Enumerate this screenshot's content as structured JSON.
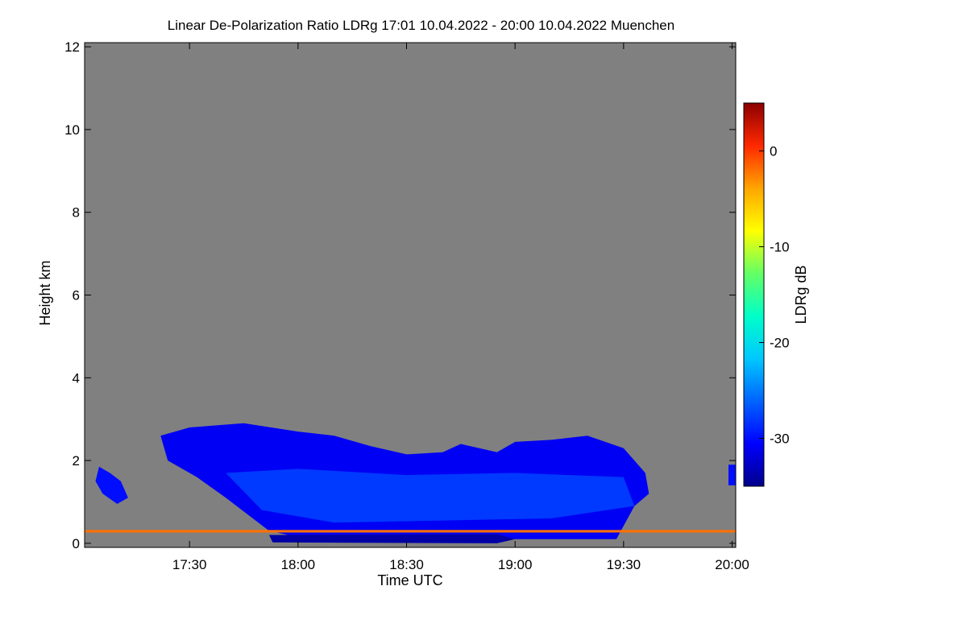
{
  "chart_data": {
    "type": "heatmap",
    "title": "Linear De-Polarization Ratio LDRg   17:01 10.04.2022 - 20:00 10.04.2022 Muenchen",
    "xlabel": "Time UTC",
    "ylabel": "Height km",
    "colorbar_label": "LDRg dB",
    "x_range": [
      "17:01",
      "20:01"
    ],
    "x_ticks": [
      "17:30",
      "18:00",
      "18:30",
      "19:00",
      "19:30",
      "20:00"
    ],
    "y_range": [
      -0.1,
      12.1
    ],
    "y_ticks": [
      0,
      2,
      4,
      6,
      8,
      10,
      12
    ],
    "colorbar_range": [
      -35,
      5
    ],
    "colorbar_ticks": [
      0,
      -10,
      -20,
      -30
    ],
    "background_color": "#808080",
    "colormap": [
      "#00008c",
      "#0000ff",
      "#0064ff",
      "#00c8ff",
      "#00ffc8",
      "#64ff64",
      "#ffff00",
      "#ffa500",
      "#ff2800",
      "#8c0000"
    ],
    "regions": [
      {
        "name": "main-cloud-body",
        "ldr_db": -31,
        "outline": [
          [
            "17:22",
            2.6
          ],
          [
            "17:30",
            2.8
          ],
          [
            "17:45",
            2.9
          ],
          [
            "18:00",
            2.7
          ],
          [
            "18:10",
            2.6
          ],
          [
            "18:20",
            2.35
          ],
          [
            "18:30",
            2.15
          ],
          [
            "18:40",
            2.2
          ],
          [
            "18:45",
            2.4
          ],
          [
            "18:55",
            2.2
          ],
          [
            "19:00",
            2.45
          ],
          [
            "19:10",
            2.5
          ],
          [
            "19:20",
            2.6
          ],
          [
            "19:30",
            2.3
          ],
          [
            "19:36",
            1.7
          ],
          [
            "19:37",
            1.2
          ],
          [
            "19:33",
            0.9
          ],
          [
            "19:28",
            0.1
          ],
          [
            "18:50",
            0.1
          ],
          [
            "18:00",
            0.15
          ],
          [
            "17:52",
            0.3
          ],
          [
            "17:40",
            1.1
          ],
          [
            "17:32",
            1.6
          ],
          [
            "17:24",
            2.0
          ],
          [
            "17:22",
            2.6
          ]
        ]
      },
      {
        "name": "intense-lower-core",
        "ldr_db": -28,
        "outline": [
          [
            "17:40",
            1.7
          ],
          [
            "18:00",
            1.8
          ],
          [
            "18:30",
            1.65
          ],
          [
            "19:00",
            1.7
          ],
          [
            "19:30",
            1.6
          ],
          [
            "19:33",
            0.9
          ],
          [
            "19:10",
            0.6
          ],
          [
            "18:40",
            0.55
          ],
          [
            "18:10",
            0.5
          ],
          [
            "17:50",
            0.8
          ],
          [
            "17:40",
            1.7
          ]
        ]
      },
      {
        "name": "early-low-cloud",
        "ldr_db": -30,
        "outline": [
          [
            "17:05",
            1.85
          ],
          [
            "17:08",
            1.7
          ],
          [
            "17:11",
            1.5
          ],
          [
            "17:13",
            1.1
          ],
          [
            "17:10",
            0.95
          ],
          [
            "17:06",
            1.2
          ],
          [
            "17:04",
            1.5
          ],
          [
            "17:05",
            1.85
          ]
        ]
      },
      {
        "name": "late-low-cloud",
        "ldr_db": -30,
        "outline": [
          [
            "19:59",
            1.9
          ],
          [
            "20:01",
            1.9
          ],
          [
            "20:01",
            1.4
          ],
          [
            "19:59",
            1.4
          ],
          [
            "19:59",
            1.9
          ]
        ]
      },
      {
        "name": "precip-base-layer",
        "ldr_db": -34,
        "outline": [
          [
            "17:52",
            0.2
          ],
          [
            "18:55",
            0.22
          ],
          [
            "19:00",
            0.1
          ],
          [
            "18:55",
            0.0
          ],
          [
            "17:53",
            0.02
          ],
          [
            "17:52",
            0.2
          ]
        ]
      },
      {
        "name": "near-ground-line",
        "ldr_db": -2,
        "outline": [
          [
            "17:01",
            0.32
          ],
          [
            "20:01",
            0.32
          ],
          [
            "20:01",
            0.26
          ],
          [
            "17:01",
            0.26
          ],
          [
            "17:01",
            0.32
          ]
        ]
      }
    ]
  }
}
